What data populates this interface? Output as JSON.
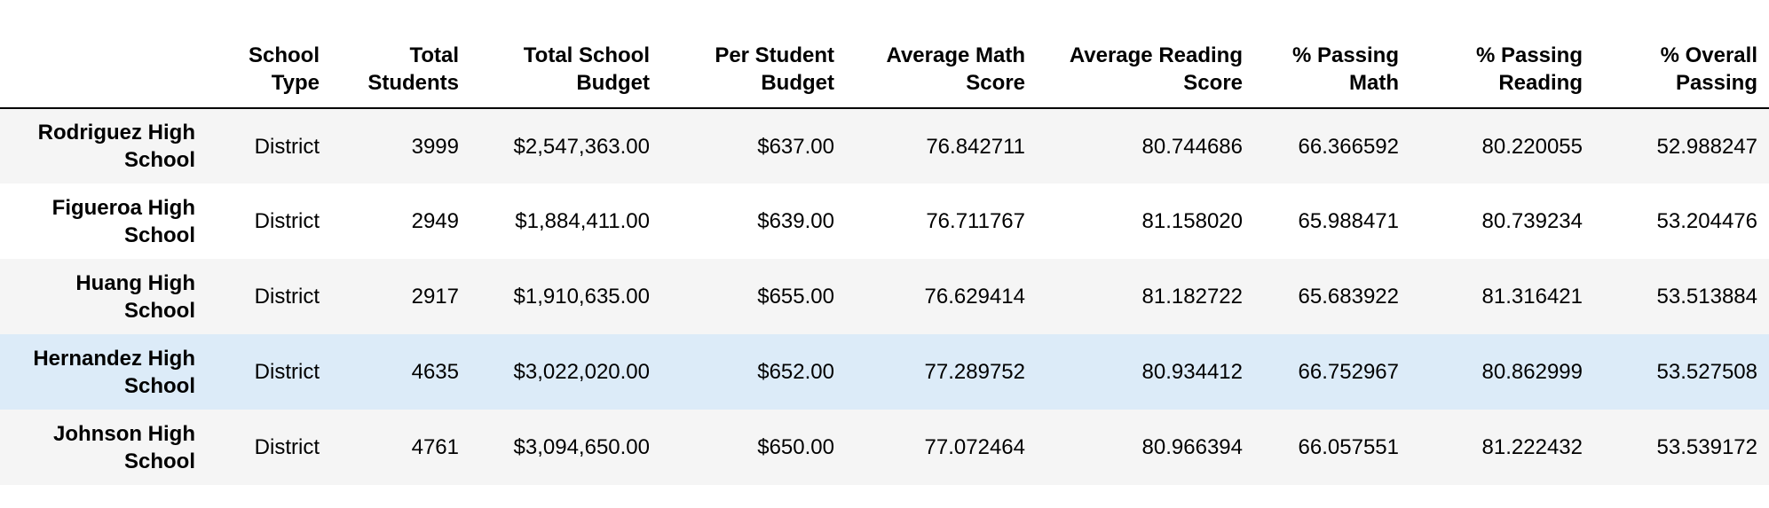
{
  "table": {
    "columns": [
      "",
      "School Type",
      "Total Students",
      "Total School Budget",
      "Per Student Budget",
      "Average Math Score",
      "Average Reading Score",
      "% Passing Math",
      "% Passing Reading",
      "% Overall Passing"
    ],
    "rows": [
      {
        "school": "Rodriguez High School",
        "type": "District",
        "students": "3999",
        "budget": "$2,547,363.00",
        "per_student": "$637.00",
        "avg_math": "76.842711",
        "avg_reading": "80.744686",
        "pass_math": "66.366592",
        "pass_reading": "80.220055",
        "overall": "52.988247"
      },
      {
        "school": "Figueroa High School",
        "type": "District",
        "students": "2949",
        "budget": "$1,884,411.00",
        "per_student": "$639.00",
        "avg_math": "76.711767",
        "avg_reading": "81.158020",
        "pass_math": "65.988471",
        "pass_reading": "80.739234",
        "overall": "53.204476"
      },
      {
        "school": "Huang High School",
        "type": "District",
        "students": "2917",
        "budget": "$1,910,635.00",
        "per_student": "$655.00",
        "avg_math": "76.629414",
        "avg_reading": "81.182722",
        "pass_math": "65.683922",
        "pass_reading": "81.316421",
        "overall": "53.513884"
      },
      {
        "school": "Hernandez High School",
        "type": "District",
        "students": "4635",
        "budget": "$3,022,020.00",
        "per_student": "$652.00",
        "avg_math": "77.289752",
        "avg_reading": "80.934412",
        "pass_math": "66.752967",
        "pass_reading": "80.862999",
        "overall": "53.527508"
      },
      {
        "school": "Johnson High School",
        "type": "District",
        "students": "4761",
        "budget": "$3,094,650.00",
        "per_student": "$650.00",
        "avg_math": "77.072464",
        "avg_reading": "80.966394",
        "pass_math": "66.057551",
        "pass_reading": "81.222432",
        "overall": "53.539172"
      }
    ],
    "hovered_row_index": 3
  },
  "colors": {
    "row_stripe": "#f5f5f5",
    "row_plain": "#ffffff",
    "row_hover": "#dcebf8",
    "header_rule": "#000000"
  }
}
